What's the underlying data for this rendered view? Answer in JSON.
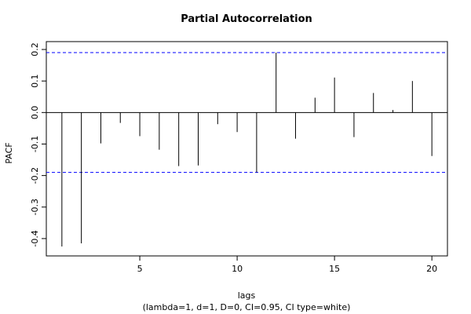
{
  "chart_data": {
    "type": "bar",
    "title": "Partial Autocorrelation",
    "xlabel": "lags",
    "subtitle": "(lambda=1, d=1, D=0, CI=0.95, CI type=white)",
    "ylabel": "PACF",
    "x": [
      1,
      2,
      3,
      4,
      5,
      6,
      7,
      8,
      9,
      10,
      11,
      12,
      13,
      14,
      15,
      16,
      17,
      18,
      19,
      20
    ],
    "values": [
      -0.425,
      -0.415,
      -0.098,
      -0.033,
      -0.075,
      -0.118,
      -0.17,
      -0.168,
      -0.037,
      -0.062,
      -0.19,
      0.19,
      -0.083,
      0.047,
      0.111,
      -0.078,
      0.062,
      0.008,
      0.1,
      -0.138
    ],
    "ci": [
      0.19,
      -0.19
    ],
    "xlim": [
      0.2,
      20.8
    ],
    "ylim": [
      -0.455,
      0.225
    ],
    "xticks": [
      5,
      10,
      15,
      20
    ],
    "yticks": [
      -0.4,
      -0.3,
      -0.2,
      -0.1,
      0.0,
      0.1,
      0.2
    ],
    "ytick_labels": [
      "-0.4",
      "-0.3",
      "-0.2",
      "-0.1",
      "0.0",
      "0.1",
      "0.2"
    ],
    "ci_color": "#0000ff",
    "line_color": "#000000",
    "grid": false
  }
}
